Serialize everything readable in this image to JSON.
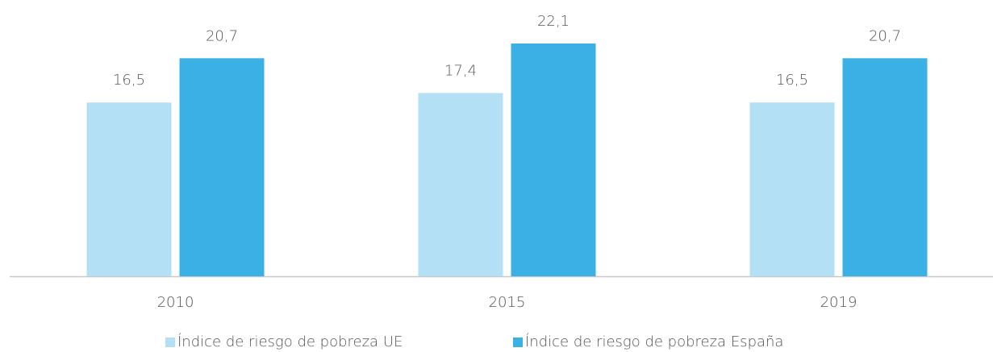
{
  "chart_data": {
    "type": "bar",
    "categories": [
      "2010",
      "2015",
      "2019"
    ],
    "series": [
      {
        "name": "Índice de riesgo de pobreza UE",
        "color": "#b3e0f4",
        "values": [
          16.5,
          17.4,
          16.5
        ],
        "value_labels": [
          "16,5",
          "17,4",
          "16,5"
        ]
      },
      {
        "name": "Índice de riesgo de pobreza España",
        "color": "#3bb0e4",
        "values": [
          20.7,
          22.1,
          20.7
        ],
        "value_labels": [
          "20,7",
          "22,1",
          "20,7"
        ]
      }
    ],
    "legend": "bottom"
  }
}
